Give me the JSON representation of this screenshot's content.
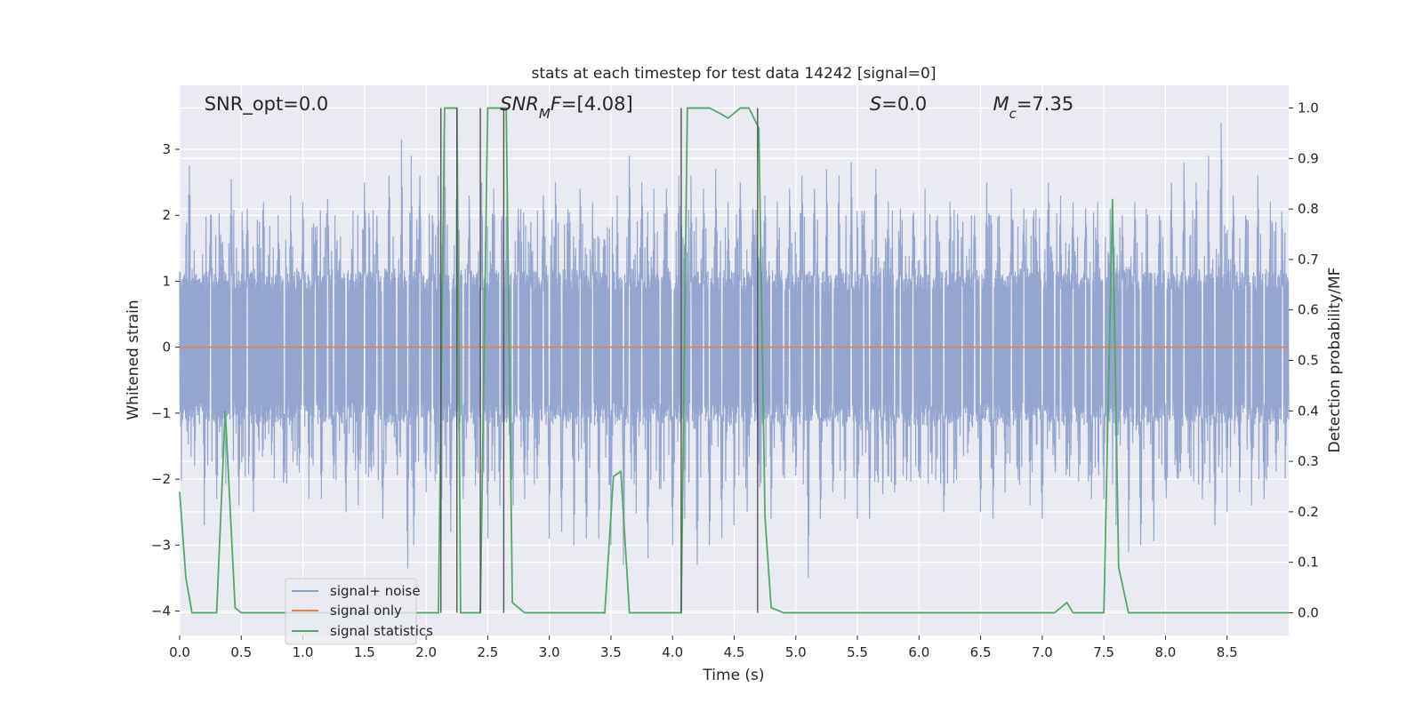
{
  "chart_data": {
    "type": "line",
    "title": "stats at each timestep for test data 14242 [signal=0]",
    "xlabel": "Time (s)",
    "ylabel_left": "Whitened strain",
    "ylabel_right": "Detection probability/MF",
    "xlim": [
      0,
      9.0
    ],
    "ylim_left": [
      -4.37,
      3.97
    ],
    "ylim_right": [
      -0.045,
      1.045
    ],
    "xticks": [
      0.0,
      0.5,
      1.0,
      1.5,
      2.0,
      2.5,
      3.0,
      3.5,
      4.0,
      4.5,
      5.0,
      5.5,
      6.0,
      6.5,
      7.0,
      7.5,
      8.0,
      8.5
    ],
    "xtick_labels": [
      "0.0",
      "0.5",
      "1.0",
      "1.5",
      "2.0",
      "2.5",
      "3.0",
      "3.5",
      "4.0",
      "4.5",
      "5.0",
      "5.5",
      "6.0",
      "6.5",
      "7.0",
      "7.5",
      "8.0",
      "8.5"
    ],
    "yticks_left": [
      -4,
      -3,
      -2,
      -1,
      0,
      1,
      2,
      3
    ],
    "ytick_labels_left": [
      "−4",
      "−3",
      "−2",
      "−1",
      "0",
      "1",
      "2",
      "3"
    ],
    "yticks_right": [
      0.0,
      0.1,
      0.2,
      0.3,
      0.4,
      0.5,
      0.6,
      0.7,
      0.8,
      0.9,
      1.0
    ],
    "ytick_labels_right": [
      "0.0",
      "0.1",
      "0.2",
      "0.3",
      "0.4",
      "0.5",
      "0.6",
      "0.7",
      "0.8",
      "0.9",
      "1.0"
    ],
    "grid": true,
    "legend_position": "lower-left",
    "annotations": [
      {
        "parts": [
          {
            "t": "SNR_opt=0.0",
            "i": false
          }
        ],
        "x": 0.2
      },
      {
        "parts": [
          {
            "t": "SNR",
            "i": true
          },
          {
            "t": "M",
            "i": true,
            "sub": true
          },
          {
            "t": "F",
            "i": true
          },
          {
            "t": "=[4.08]",
            "i": false
          }
        ],
        "x": 2.6
      },
      {
        "parts": [
          {
            "t": "S",
            "i": true
          },
          {
            "t": "=0.0",
            "i": false
          }
        ],
        "x": 5.6
      },
      {
        "parts": [
          {
            "t": "M",
            "i": true
          },
          {
            "t": "c",
            "i": true,
            "sub": true
          },
          {
            "t": "=7.35",
            "i": false
          }
        ],
        "x": 6.6
      }
    ],
    "series": [
      {
        "name": "signal+ noise",
        "color": "#8fa2cc",
        "axis": "left",
        "style": "noise",
        "base_lower": -1.0,
        "base_upper": 1.0,
        "peaks": [
          [
            0.05,
            1.7
          ],
          [
            0.08,
            2.75
          ],
          [
            0.12,
            -1.8
          ],
          [
            0.2,
            -2.7
          ],
          [
            0.25,
            2.0
          ],
          [
            0.3,
            -2.3
          ],
          [
            0.35,
            1.6
          ],
          [
            0.42,
            2.55
          ],
          [
            0.48,
            -2.4
          ],
          [
            0.55,
            2.1
          ],
          [
            0.6,
            -2.5
          ],
          [
            0.68,
            2.2
          ],
          [
            0.75,
            -2.6
          ],
          [
            0.8,
            2.0
          ],
          [
            0.85,
            -2.7
          ],
          [
            0.9,
            2.3
          ],
          [
            0.97,
            -1.9
          ],
          [
            1.0,
            2.2
          ],
          [
            1.05,
            -2.3
          ],
          [
            1.1,
            2.1
          ],
          [
            1.15,
            -2.3
          ],
          [
            1.2,
            2.25
          ],
          [
            1.25,
            -2.0
          ],
          [
            1.3,
            2.0
          ],
          [
            1.35,
            -2.5
          ],
          [
            1.4,
            2.3
          ],
          [
            1.45,
            -2.4
          ],
          [
            1.5,
            2.5
          ],
          [
            1.55,
            -2.5
          ],
          [
            1.6,
            2.0
          ],
          [
            1.65,
            -2.6
          ],
          [
            1.7,
            2.6
          ],
          [
            1.76,
            -2.3
          ],
          [
            1.8,
            3.15
          ],
          [
            1.85,
            -3.35
          ],
          [
            1.88,
            2.9
          ],
          [
            1.9,
            -3.0
          ],
          [
            1.95,
            2.6
          ],
          [
            2.0,
            -2.2
          ],
          [
            2.05,
            2.0
          ],
          [
            2.08,
            -2.5
          ],
          [
            2.1,
            2.6
          ],
          [
            2.12,
            -3.0
          ],
          [
            2.15,
            3.1
          ],
          [
            2.2,
            -2.8
          ],
          [
            2.25,
            2.7
          ],
          [
            2.3,
            -2.3
          ],
          [
            2.35,
            2.3
          ],
          [
            2.4,
            -2.1
          ],
          [
            2.45,
            2.5
          ],
          [
            2.5,
            -2.9
          ],
          [
            2.55,
            2.4
          ],
          [
            2.6,
            -2.4
          ],
          [
            2.65,
            2.9
          ],
          [
            2.7,
            -2.8
          ],
          [
            2.75,
            2.1
          ],
          [
            2.8,
            -2.3
          ],
          [
            2.85,
            1.9
          ],
          [
            2.9,
            -2.0
          ],
          [
            2.95,
            2.3
          ],
          [
            3.0,
            -2.9
          ],
          [
            3.05,
            2.5
          ],
          [
            3.1,
            -2.8
          ],
          [
            3.15,
            2.3
          ],
          [
            3.2,
            -3.0
          ],
          [
            3.25,
            2.4
          ],
          [
            3.3,
            -2.9
          ],
          [
            3.35,
            2.2
          ],
          [
            3.4,
            -2.9
          ],
          [
            3.45,
            2.1
          ],
          [
            3.5,
            -3.0
          ],
          [
            3.55,
            2.3
          ],
          [
            3.6,
            -3.3
          ],
          [
            3.65,
            2.9
          ],
          [
            3.7,
            -3.1
          ],
          [
            3.75,
            2.5
          ],
          [
            3.8,
            -3.2
          ],
          [
            3.85,
            2.4
          ],
          [
            3.9,
            -3.0
          ],
          [
            3.95,
            2.4
          ],
          [
            4.0,
            -3.0
          ],
          [
            4.05,
            2.6
          ],
          [
            4.1,
            -2.6
          ],
          [
            4.15,
            2.6
          ],
          [
            4.2,
            -3.3
          ],
          [
            4.25,
            2.4
          ],
          [
            4.3,
            -3.0
          ],
          [
            4.35,
            2.7
          ],
          [
            4.4,
            -2.9
          ],
          [
            4.45,
            2.2
          ],
          [
            4.5,
            -2.7
          ],
          [
            4.55,
            2.5
          ],
          [
            4.6,
            -2.8
          ],
          [
            4.65,
            2.1
          ],
          [
            4.7,
            -2.5
          ],
          [
            4.75,
            2.3
          ],
          [
            4.8,
            -2.6
          ],
          [
            4.85,
            2.2
          ],
          [
            4.9,
            -2.7
          ],
          [
            4.95,
            2.4
          ],
          [
            5.0,
            -2.3
          ],
          [
            5.05,
            2.6
          ],
          [
            5.1,
            -3.5
          ],
          [
            5.15,
            2.4
          ],
          [
            5.2,
            -2.6
          ],
          [
            5.25,
            2.7
          ],
          [
            5.3,
            -2.2
          ],
          [
            5.35,
            2.6
          ],
          [
            5.4,
            -2.3
          ],
          [
            5.45,
            2.8
          ],
          [
            5.5,
            -2.6
          ],
          [
            5.55,
            2.3
          ],
          [
            5.6,
            -2.6
          ],
          [
            5.65,
            2.7
          ],
          [
            5.7,
            -2.8
          ],
          [
            5.75,
            2.2
          ],
          [
            5.8,
            -2.2
          ],
          [
            5.85,
            2.1
          ],
          [
            5.9,
            -2.5
          ],
          [
            5.95,
            2.0
          ],
          [
            6.0,
            -2.4
          ],
          [
            6.05,
            2.4
          ],
          [
            6.1,
            -2.2
          ],
          [
            6.15,
            2.0
          ],
          [
            6.2,
            -2.5
          ],
          [
            6.25,
            2.2
          ],
          [
            6.3,
            -2.3
          ],
          [
            6.35,
            2.2
          ],
          [
            6.4,
            -2.2
          ],
          [
            6.45,
            2.0
          ],
          [
            6.5,
            -2.5
          ],
          [
            6.55,
            2.5
          ],
          [
            6.6,
            -2.6
          ],
          [
            6.65,
            2.0
          ],
          [
            6.7,
            -2.2
          ],
          [
            6.75,
            2.4
          ],
          [
            6.8,
            -2.6
          ],
          [
            6.85,
            2.1
          ],
          [
            6.9,
            -2.4
          ],
          [
            6.95,
            2.1
          ],
          [
            7.0,
            -2.6
          ],
          [
            7.05,
            2.5
          ],
          [
            7.1,
            -2.3
          ],
          [
            7.15,
            2.3
          ],
          [
            7.2,
            -2.6
          ],
          [
            7.25,
            2.2
          ],
          [
            7.3,
            -2.4
          ],
          [
            7.35,
            2.1
          ],
          [
            7.4,
            -2.3
          ],
          [
            7.45,
            2.2
          ],
          [
            7.5,
            -2.3
          ],
          [
            7.55,
            2.1
          ],
          [
            7.6,
            -2.7
          ],
          [
            7.65,
            2.0
          ],
          [
            7.7,
            -3.1
          ],
          [
            7.75,
            2.2
          ],
          [
            7.8,
            -3.0
          ],
          [
            7.85,
            2.5
          ],
          [
            7.9,
            -3.4
          ],
          [
            7.95,
            2.0
          ],
          [
            8.0,
            -3.0
          ],
          [
            8.05,
            2.5
          ],
          [
            8.1,
            -2.6
          ],
          [
            8.15,
            2.8
          ],
          [
            8.2,
            -2.5
          ],
          [
            8.25,
            2.5
          ],
          [
            8.3,
            -2.3
          ],
          [
            8.35,
            2.9
          ],
          [
            8.4,
            -2.7
          ],
          [
            8.45,
            3.4
          ],
          [
            8.5,
            -2.5
          ],
          [
            8.55,
            2.3
          ],
          [
            8.6,
            -2.2
          ],
          [
            8.65,
            2.0
          ],
          [
            8.7,
            -2.4
          ],
          [
            8.75,
            2.6
          ],
          [
            8.8,
            -2.3
          ],
          [
            8.85,
            2.2
          ],
          [
            8.9,
            -2.0
          ],
          [
            8.95,
            1.8
          ]
        ]
      },
      {
        "name": "signal only",
        "color": "#dd8452",
        "axis": "left",
        "x": [
          0,
          9.0
        ],
        "y": [
          0,
          0
        ]
      },
      {
        "name": "signal statistics",
        "color": "#55a868",
        "axis": "right",
        "x": [
          0.0,
          0.05,
          0.1,
          0.2,
          0.3,
          0.37,
          0.45,
          0.5,
          0.6,
          1.0,
          1.5,
          2.0,
          2.1,
          2.15,
          2.19,
          2.25,
          2.28,
          2.32,
          2.4,
          2.44,
          2.5,
          2.6,
          2.65,
          2.7,
          2.8,
          3.0,
          3.2,
          3.45,
          3.52,
          3.58,
          3.65,
          3.8,
          4.0,
          4.07,
          4.12,
          4.2,
          4.3,
          4.38,
          4.45,
          4.55,
          4.62,
          4.7,
          4.75,
          4.8,
          4.9,
          5.0,
          6.0,
          6.5,
          6.75,
          6.8,
          7.0,
          7.1,
          7.2,
          7.25,
          7.35,
          7.45,
          7.5,
          7.57,
          7.62,
          7.7,
          8.0,
          8.5,
          9.0
        ],
        "y": [
          0.24,
          0.07,
          0.0,
          0.0,
          0.0,
          0.4,
          0.01,
          0.0,
          0.0,
          0.0,
          0.0,
          0.0,
          0.0,
          1.0,
          1.0,
          1.0,
          0.0,
          0.0,
          0.0,
          0.0,
          1.0,
          1.0,
          1.0,
          0.02,
          0.0,
          0.0,
          0.0,
          0.0,
          0.27,
          0.28,
          0.0,
          0.0,
          0.0,
          0.0,
          1.0,
          1.0,
          1.0,
          0.99,
          0.98,
          1.0,
          1.0,
          0.96,
          0.19,
          0.01,
          0.0,
          0.0,
          0.0,
          0.0,
          0.0,
          0.0,
          0.0,
          0.0,
          0.02,
          0.0,
          0.0,
          0.0,
          0.0,
          0.82,
          0.09,
          0.0,
          0.0,
          0.0,
          0.0
        ]
      }
    ],
    "vlines": [
      2.12,
      2.25,
      2.44,
      2.63,
      4.07,
      4.69
    ]
  }
}
